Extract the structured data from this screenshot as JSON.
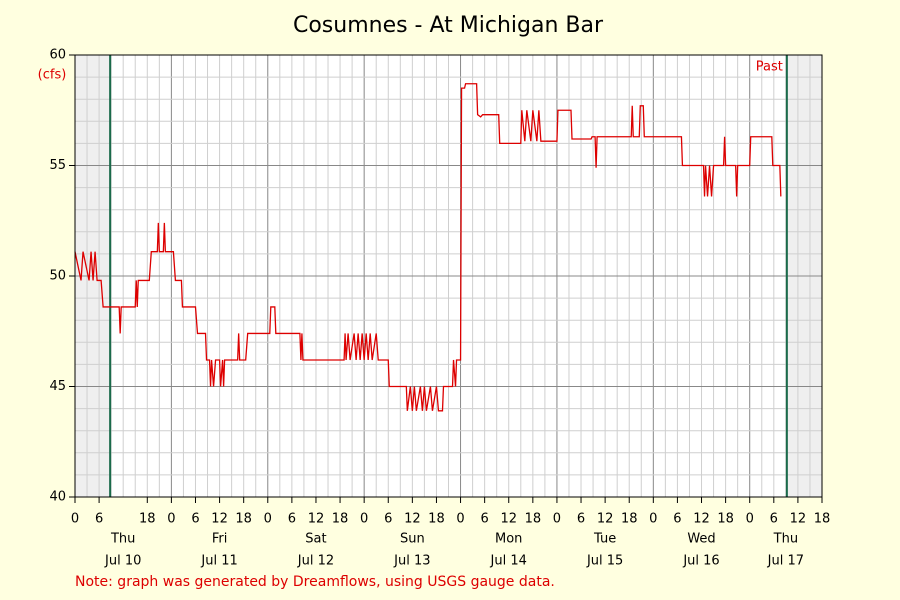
{
  "chart_data": {
    "type": "line",
    "title": "Cosumnes - At Michigan Bar",
    "y_label": "(cfs)",
    "note": "Note: graph was generated by Dreamflows, using USGS gauge data.",
    "past_label": "Past",
    "markers": [
      8.75,
      177.25
    ],
    "xlim": [
      0,
      186
    ],
    "ylim": [
      40,
      60
    ],
    "yticks": [
      40,
      45,
      50,
      55,
      60
    ],
    "xticks": [
      0,
      6,
      18,
      {
        "value": 24,
        "label": "0"
      },
      {
        "value": 30,
        "label": "6"
      },
      {
        "value": 36,
        "label": "12"
      },
      {
        "value": 42,
        "label": "18"
      },
      {
        "value": 48,
        "label": "0"
      },
      {
        "value": 54,
        "label": "6"
      },
      {
        "value": 60,
        "label": "12"
      },
      {
        "value": 66,
        "label": "18"
      },
      {
        "value": 72,
        "label": "0"
      },
      {
        "value": 78,
        "label": "6"
      },
      {
        "value": 84,
        "label": "12"
      },
      {
        "value": 90,
        "label": "18"
      },
      {
        "value": 96,
        "label": "0"
      },
      {
        "value": 102,
        "label": "6"
      },
      {
        "value": 108,
        "label": "12"
      },
      {
        "value": 114,
        "label": "18"
      },
      {
        "value": 120,
        "label": "0"
      },
      {
        "value": 126,
        "label": "6"
      },
      {
        "value": 132,
        "label": "12"
      },
      {
        "value": 138,
        "label": "18"
      },
      {
        "value": 144,
        "label": "0"
      },
      {
        "value": 150,
        "label": "6"
      },
      {
        "value": 156,
        "label": "12"
      },
      {
        "value": 162,
        "label": "18"
      },
      {
        "value": 168,
        "label": "0"
      },
      {
        "value": 174,
        "label": "6"
      },
      {
        "value": 180,
        "label": "12"
      },
      {
        "value": 186,
        "label": "18"
      }
    ],
    "day_labels": [
      {
        "hour": 12,
        "weekday": "Thu",
        "date": "Jul 10"
      },
      {
        "hour": 36,
        "weekday": "Fri",
        "date": "Jul 11"
      },
      {
        "hour": 60,
        "weekday": "Sat",
        "date": "Jul 12"
      },
      {
        "hour": 84,
        "weekday": "Sun",
        "date": "Jul 13"
      },
      {
        "hour": 108,
        "weekday": "Mon",
        "date": "Jul 14"
      },
      {
        "hour": 132,
        "weekday": "Tue",
        "date": "Jul 15"
      },
      {
        "hour": 156,
        "weekday": "Wed",
        "date": "Jul 16"
      },
      {
        "hour": 177,
        "weekday": "Thu",
        "date": "Jul 17"
      }
    ],
    "grid": true,
    "xgrid_step": 3,
    "xgrid_major": 24,
    "ygrid_step": 1,
    "color": "#dd0000",
    "x": [
      0,
      1.5,
      2,
      3.5,
      4,
      4.5,
      5,
      5.5,
      6.5,
      7,
      11,
      11.25,
      11.5,
      15,
      15.25,
      15.5,
      15.75,
      18.5,
      19,
      20.5,
      20.75,
      21,
      22,
      22.25,
      22.5,
      24.5,
      25,
      26.5,
      26.75,
      30,
      30.5,
      32.5,
      32.75,
      33.5,
      33.75,
      34,
      34.5,
      35,
      36,
      36.25,
      36.75,
      37,
      37.25,
      40.5,
      40.75,
      41,
      42.5,
      43,
      48.5,
      48.75,
      49.75,
      50,
      56,
      56.25,
      56.5,
      56.75,
      67,
      67.25,
      67.5,
      68,
      68.5,
      69.5,
      70,
      70.5,
      71,
      71.5,
      72,
      72.5,
      73,
      73.5,
      74,
      75,
      75.5,
      78,
      78.25,
      82.5,
      82.75,
      83.5,
      84,
      84.5,
      85,
      86,
      86.5,
      87,
      87.5,
      88.5,
      89,
      90,
      90.5,
      91.5,
      91.75,
      94,
      94.25,
      94.75,
      95,
      96,
      96.25,
      97,
      97.25,
      100,
      100.25,
      101,
      101.5,
      105.5,
      105.75,
      111,
      111.25,
      112,
      112.5,
      113.5,
      114,
      115,
      115.5,
      116,
      120,
      120.25,
      123.5,
      123.75,
      128.5,
      128.75,
      129.5,
      129.75,
      130,
      138.5,
      138.75,
      139,
      140.5,
      140.75,
      141.5,
      141.75,
      151,
      151.25,
      156.5,
      156.75,
      157,
      157.5,
      158,
      158.5,
      159,
      161.5,
      161.75,
      162,
      164.5,
      164.75,
      165,
      168,
      168.25,
      173.5,
      173.75,
      175.5,
      175.75
    ],
    "values": [
      51.1,
      49.8,
      51.1,
      49.8,
      51.1,
      49.8,
      51.1,
      49.8,
      49.8,
      48.6,
      48.6,
      47.4,
      48.6,
      48.6,
      49.8,
      48.6,
      49.8,
      49.8,
      51.1,
      51.1,
      52.4,
      51.1,
      51.1,
      52.4,
      51.1,
      51.1,
      49.8,
      49.8,
      48.6,
      48.6,
      47.4,
      47.4,
      46.2,
      46.2,
      45.0,
      46.2,
      45.0,
      46.2,
      46.2,
      45.0,
      46.2,
      45.0,
      46.2,
      46.2,
      47.4,
      46.2,
      46.2,
      47.4,
      47.4,
      48.6,
      48.6,
      47.4,
      47.4,
      46.2,
      47.4,
      46.2,
      46.2,
      47.4,
      46.2,
      47.4,
      46.2,
      47.4,
      46.2,
      47.4,
      46.2,
      47.4,
      46.2,
      47.4,
      46.2,
      47.4,
      46.2,
      47.4,
      46.2,
      46.2,
      45.0,
      45.0,
      43.9,
      45.0,
      43.9,
      45.0,
      43.9,
      45.0,
      43.9,
      45.0,
      43.9,
      45.0,
      43.9,
      45.0,
      43.9,
      43.9,
      45.0,
      45.0,
      46.2,
      45.0,
      46.2,
      46.2,
      58.5,
      58.5,
      58.7,
      58.7,
      57.3,
      57.2,
      57.3,
      57.3,
      56.0,
      56.0,
      57.5,
      56.1,
      57.5,
      56.1,
      57.5,
      56.1,
      57.5,
      56.1,
      56.1,
      57.5,
      57.5,
      56.2,
      56.2,
      56.3,
      56.3,
      54.9,
      56.3,
      56.3,
      57.7,
      56.3,
      56.3,
      57.7,
      57.7,
      56.3,
      56.3,
      55.0,
      55.0,
      53.6,
      55.0,
      53.6,
      55.0,
      53.6,
      55.0,
      55.0,
      56.3,
      55.0,
      55.0,
      53.6,
      55.0,
      55.0,
      56.3,
      56.3,
      55.0,
      55.0,
      53.6
    ]
  }
}
